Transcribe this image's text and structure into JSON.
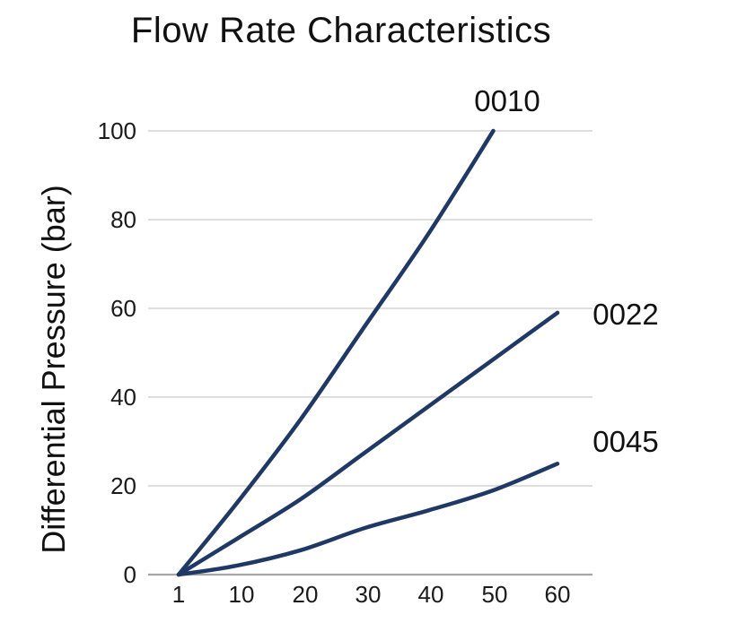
{
  "page": {
    "background": "#ffffff"
  },
  "chart_data": {
    "type": "line",
    "title": "Flow Rate Characteristics",
    "xlabel": "",
    "ylabel": "Differential Pressure (bar)",
    "xlim": [
      1,
      60
    ],
    "ylim": [
      0,
      100
    ],
    "x_tick_values": [
      1,
      10,
      20,
      30,
      40,
      50,
      60
    ],
    "x_tick_labels": [
      "1",
      "10",
      "20",
      "30",
      "40",
      "50",
      "60"
    ],
    "y_tick_values": [
      0,
      20,
      40,
      60,
      80,
      100
    ],
    "y_tick_labels": [
      "0",
      "20",
      "40",
      "60",
      "80",
      "100"
    ],
    "grid": "horizontal gridlines only",
    "legend_position": "labels at line ends",
    "series": [
      {
        "name": "0010",
        "x": [
          1,
          10,
          20,
          30,
          40,
          50
        ],
        "y": [
          0,
          16,
          35,
          56,
          77,
          100
        ]
      },
      {
        "name": "0022",
        "x": [
          1,
          10,
          20,
          30,
          40,
          50,
          60
        ],
        "y": [
          0,
          8,
          17,
          27.5,
          38,
          48.5,
          59
        ]
      },
      {
        "name": "0045",
        "x": [
          1,
          10,
          20,
          30,
          40,
          50,
          60
        ],
        "y": [
          0,
          2,
          5.5,
          10.5,
          14.5,
          19,
          25
        ]
      }
    ],
    "colors": {
      "series_line": "#1f3864",
      "gridline": "#d9d9d9",
      "axis_line": "#a6a6a6",
      "text": "#1a1a1a"
    }
  }
}
